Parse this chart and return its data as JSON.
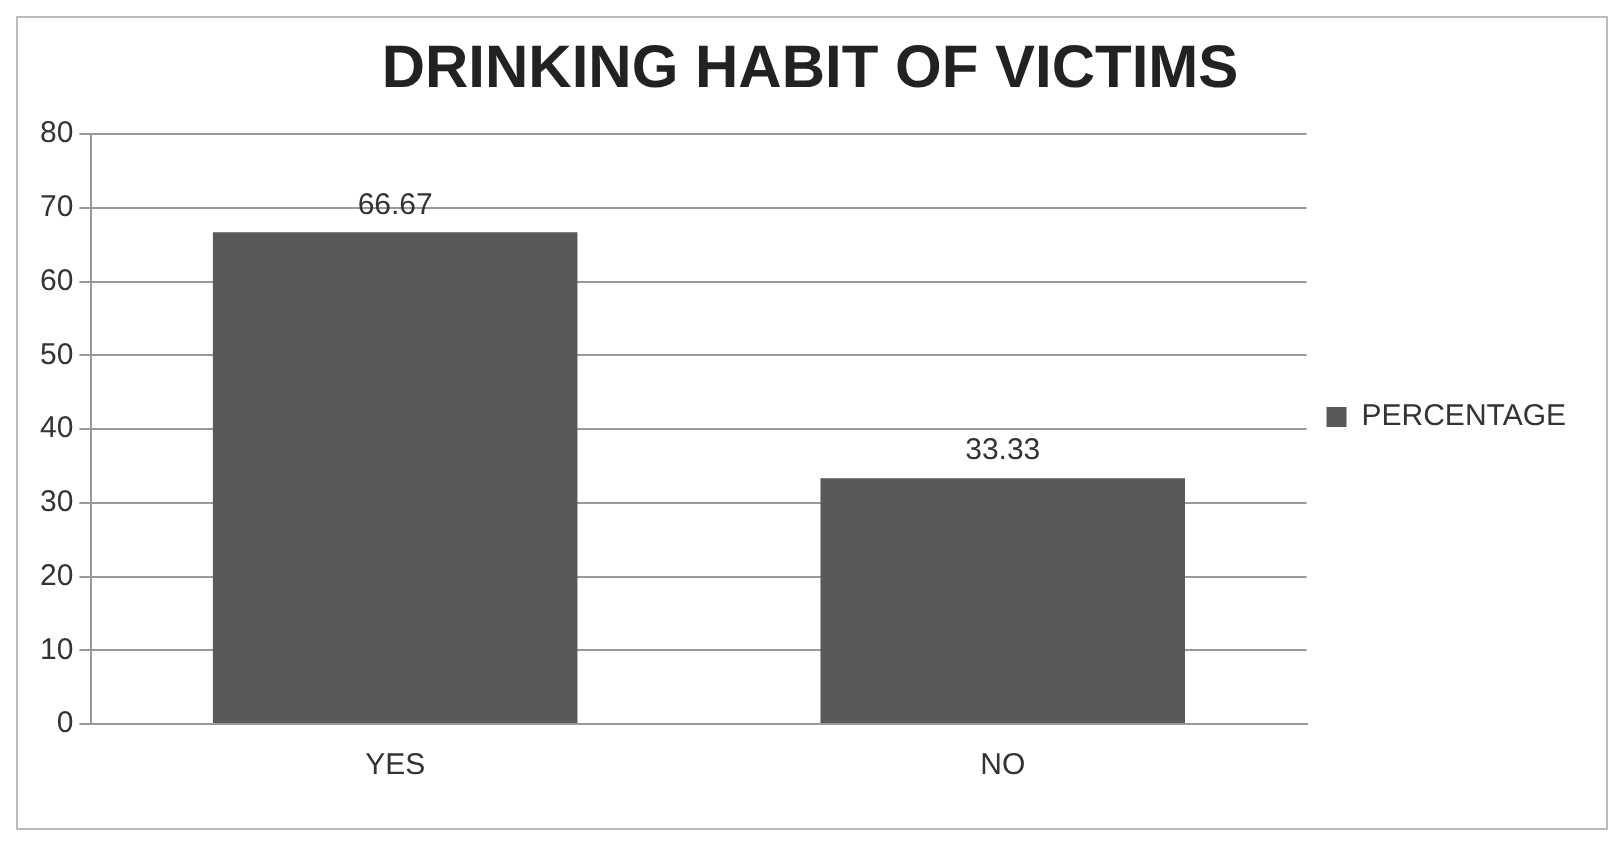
{
  "chart_data": {
    "type": "bar",
    "title": "DRINKING HABIT OF VICTIMS",
    "categories": [
      "YES",
      "NO"
    ],
    "series": [
      {
        "name": "PERCENTAGE",
        "color": "#595959",
        "values": [
          66.67,
          33.33
        ]
      }
    ],
    "ylim": [
      0,
      80
    ],
    "yticks": [
      0,
      10,
      20,
      30,
      40,
      50,
      60,
      70,
      80
    ],
    "grid": "y",
    "legend": "right",
    "data_labels": true
  }
}
